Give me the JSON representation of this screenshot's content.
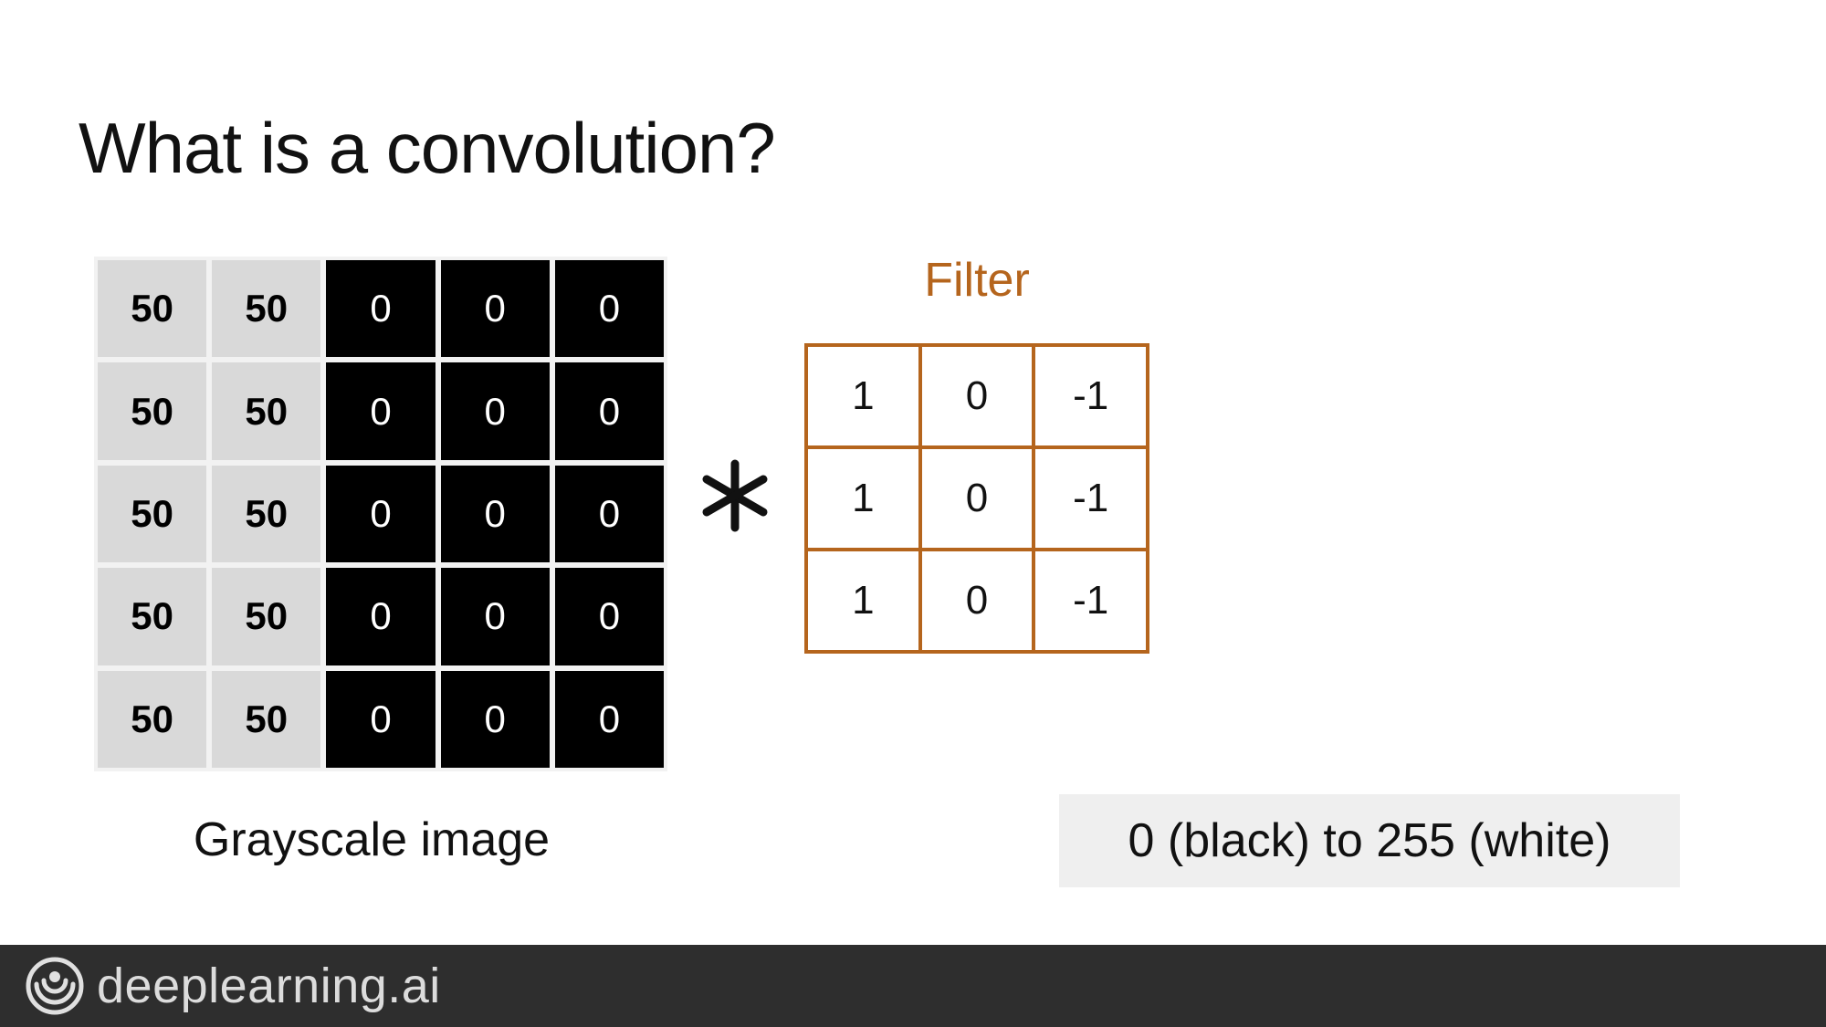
{
  "slide": {
    "title": "What is a convolution?"
  },
  "image": {
    "caption": "Grayscale image",
    "rows": [
      [
        "50",
        "50",
        "0",
        "0",
        "0"
      ],
      [
        "50",
        "50",
        "0",
        "0",
        "0"
      ],
      [
        "50",
        "50",
        "0",
        "0",
        "0"
      ],
      [
        "50",
        "50",
        "0",
        "0",
        "0"
      ],
      [
        "50",
        "50",
        "0",
        "0",
        "0"
      ]
    ]
  },
  "operator": {
    "icon": "asterisk-convolution-icon"
  },
  "filter": {
    "title": "Filter",
    "rows": [
      [
        "1",
        "0",
        "-1"
      ],
      [
        "1",
        "0",
        "-1"
      ],
      [
        "1",
        "0",
        "-1"
      ]
    ]
  },
  "range_note": "0 (black) to 255 (white)",
  "footer": {
    "brand": "deeplearning.ai",
    "logo_icon": "deeplearning-logo-icon"
  },
  "colors": {
    "filter_accent": "#b5651d",
    "light_cell": "#d9d9d9",
    "dark_cell": "#000000",
    "footer_bg": "#2e2e2e"
  }
}
